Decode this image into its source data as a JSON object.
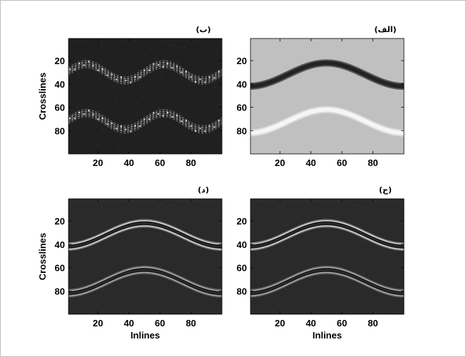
{
  "chart_data": [
    {
      "type": "heatmap",
      "panel_id": "b",
      "title": "(ب)",
      "xlabel": "",
      "ylabel": "Crosslines",
      "xlim": [
        1,
        100
      ],
      "ylim": [
        1,
        100
      ],
      "y_reversed": true,
      "xticks": [
        20,
        40,
        60,
        80
      ],
      "yticks": [
        20,
        40,
        60,
        80
      ],
      "background": "#202020",
      "colormap": "gray",
      "features": [
        {
          "name": "upper-reflector",
          "baseline": 30,
          "amplitude": 7,
          "period": 50,
          "phase_x": 0,
          "thickness": 4,
          "style": "scattered-bright"
        },
        {
          "name": "lower-reflector",
          "baseline": 72,
          "amplitude": 7,
          "period": 50,
          "phase_x": 0,
          "thickness": 4,
          "style": "scattered-bright"
        }
      ]
    },
    {
      "type": "heatmap",
      "panel_id": "alef",
      "title": "(الف)",
      "xlabel": "",
      "ylabel": "",
      "xlim": [
        1,
        100
      ],
      "ylim": [
        1,
        100
      ],
      "y_reversed": true,
      "xticks": [
        20,
        40,
        60,
        80
      ],
      "yticks": [
        20,
        40,
        60,
        80
      ],
      "background": "#c0c0c0",
      "colormap": "gray",
      "features": [
        {
          "name": "upper-reflector",
          "baseline": 32,
          "amplitude": 10,
          "period": 100,
          "phase_x": 25,
          "thickness": 4,
          "style": "dark-band",
          "color": "#2c2c2c"
        },
        {
          "name": "lower-reflector",
          "baseline": 72,
          "amplitude": 10,
          "period": 100,
          "phase_x": 25,
          "thickness": 4,
          "style": "light-band",
          "color": "#f2f2f2"
        }
      ]
    },
    {
      "type": "heatmap",
      "panel_id": "dal",
      "title": "(د)",
      "xlabel": "Inlines",
      "ylabel": "Crosslines",
      "xlim": [
        1,
        100
      ],
      "ylim": [
        1,
        100
      ],
      "y_reversed": true,
      "xticks": [
        20,
        40,
        60,
        80
      ],
      "yticks": [
        20,
        40,
        60,
        80
      ],
      "background": "#2a2a2a",
      "colormap": "gray",
      "features": [
        {
          "name": "upper-reflector",
          "baseline": 32,
          "amplitude": 10,
          "period": 100,
          "phase_x": 25,
          "thickness": 4,
          "style": "edge-bright"
        },
        {
          "name": "lower-reflector",
          "baseline": 72,
          "amplitude": 10,
          "period": 100,
          "phase_x": 25,
          "thickness": 4,
          "style": "edge-dim"
        }
      ]
    },
    {
      "type": "heatmap",
      "panel_id": "jim",
      "title": "(ج)",
      "xlabel": "Inlines",
      "ylabel": "",
      "xlim": [
        1,
        100
      ],
      "ylim": [
        1,
        100
      ],
      "y_reversed": true,
      "xticks": [
        20,
        40,
        60,
        80
      ],
      "yticks": [
        20,
        40,
        60,
        80
      ],
      "background": "#2a2a2a",
      "colormap": "gray",
      "features": [
        {
          "name": "upper-reflector",
          "baseline": 32,
          "amplitude": 10,
          "period": 100,
          "phase_x": 25,
          "thickness": 4,
          "style": "edge-bright"
        },
        {
          "name": "lower-reflector",
          "baseline": 72,
          "amplitude": 10,
          "period": 100,
          "phase_x": 25,
          "thickness": 4,
          "style": "edge-dim"
        }
      ]
    }
  ]
}
